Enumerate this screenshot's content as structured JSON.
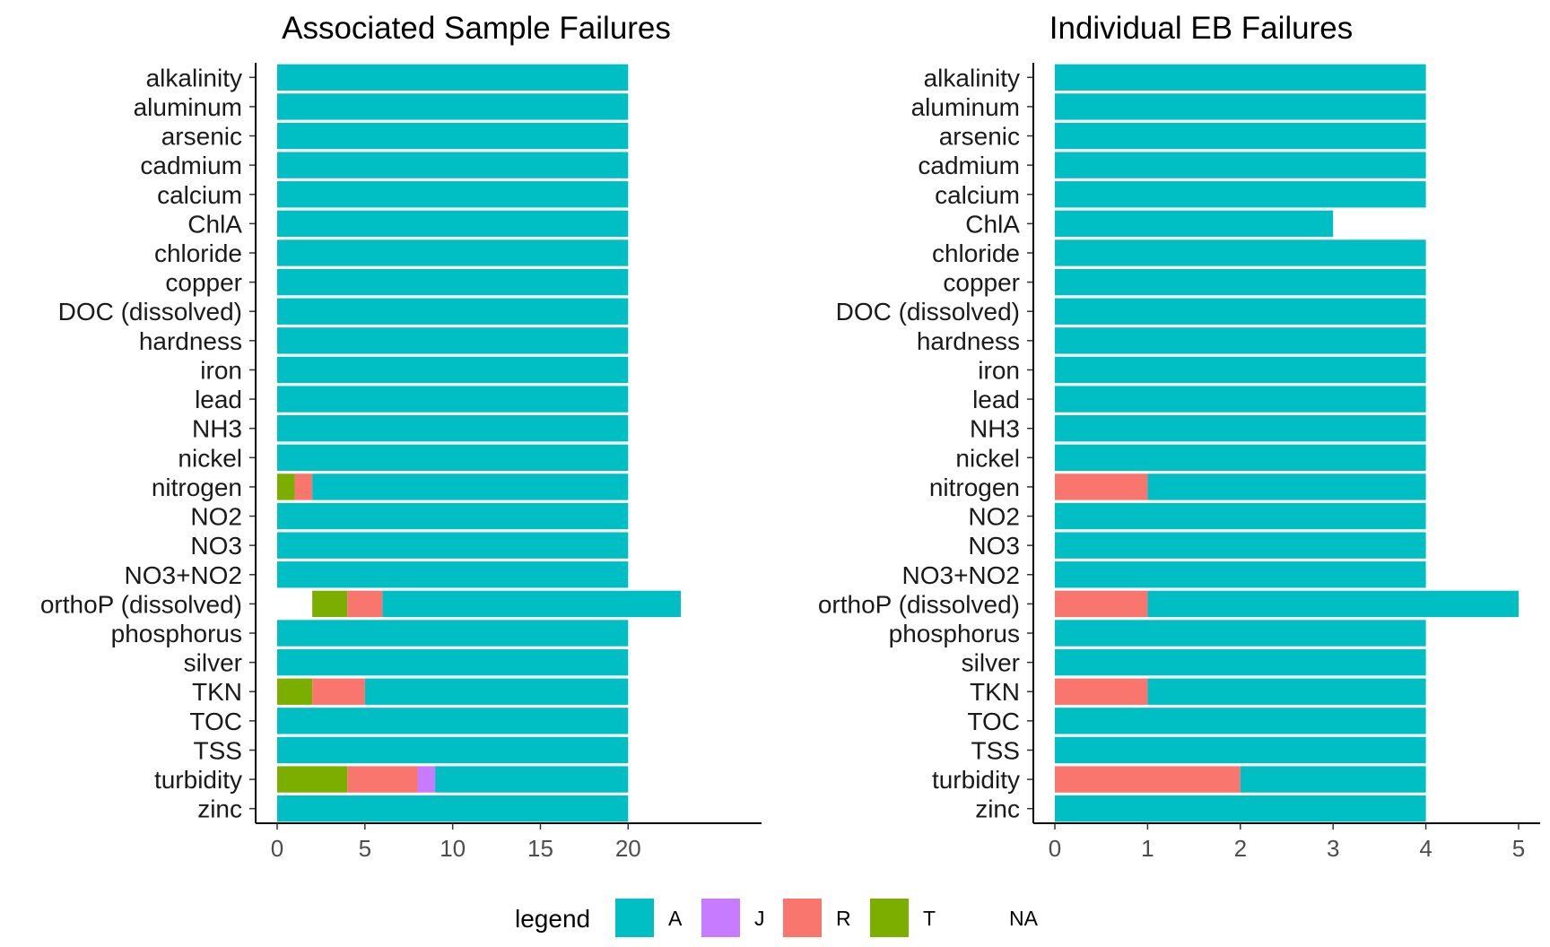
{
  "colors": {
    "A": "#00BFC4",
    "J": "#C77CFF",
    "R": "#F8766D",
    "T": "#7CAE00",
    "NA": "#ffffff"
  },
  "legend": {
    "title": "legend",
    "items": [
      {
        "key": "A",
        "label": "A"
      },
      {
        "key": "J",
        "label": "J"
      },
      {
        "key": "R",
        "label": "R"
      },
      {
        "key": "T",
        "label": "T"
      },
      {
        "key": "NA",
        "label": "NA"
      }
    ]
  },
  "chart_data": [
    {
      "type": "bar",
      "orientation": "horizontal",
      "stacked": true,
      "title": "Associated Sample Failures",
      "xlabel": "",
      "ylabel": "",
      "xlim": [
        0,
        23
      ],
      "xticks": [
        0,
        5,
        10,
        15,
        20
      ],
      "grid": false,
      "categories": [
        "alkalinity",
        "aluminum",
        "arsenic",
        "cadmium",
        "calcium",
        "ChlA",
        "chloride",
        "copper",
        "DOC (dissolved)",
        "hardness",
        "iron",
        "lead",
        "NH3",
        "nickel",
        "nitrogen",
        "NO2",
        "NO3",
        "NO3+NO2",
        "orthoP (dissolved)",
        "phosphorus",
        "silver",
        "TKN",
        "TOC",
        "TSS",
        "turbidity",
        "zinc"
      ],
      "series": [
        {
          "name": "NA",
          "values": [
            0,
            0,
            0,
            0,
            0,
            0,
            0,
            0,
            0,
            0,
            0,
            0,
            0,
            0,
            0,
            0,
            0,
            0,
            2,
            0,
            0,
            0,
            0,
            0,
            0,
            0
          ]
        },
        {
          "name": "T",
          "values": [
            0,
            0,
            0,
            0,
            0,
            0,
            0,
            0,
            0,
            0,
            0,
            0,
            0,
            0,
            1,
            0,
            0,
            0,
            2,
            0,
            0,
            2,
            0,
            0,
            4,
            0
          ]
        },
        {
          "name": "R",
          "values": [
            0,
            0,
            0,
            0,
            0,
            0,
            0,
            0,
            0,
            0,
            0,
            0,
            0,
            0,
            1,
            0,
            0,
            0,
            2,
            0,
            0,
            3,
            0,
            0,
            4,
            0
          ]
        },
        {
          "name": "J",
          "values": [
            0,
            0,
            0,
            0,
            0,
            0,
            0,
            0,
            0,
            0,
            0,
            0,
            0,
            0,
            0,
            0,
            0,
            0,
            0,
            0,
            0,
            0,
            0,
            0,
            1,
            0
          ]
        },
        {
          "name": "A",
          "values": [
            20,
            20,
            20,
            20,
            20,
            20,
            20,
            20,
            20,
            20,
            20,
            20,
            20,
            20,
            18,
            20,
            20,
            20,
            17,
            20,
            20,
            15,
            20,
            20,
            11,
            20
          ]
        }
      ]
    },
    {
      "type": "bar",
      "orientation": "horizontal",
      "stacked": true,
      "title": "Individual EB Failures",
      "xlabel": "",
      "ylabel": "",
      "xlim": [
        0,
        5
      ],
      "xticks": [
        0,
        1,
        2,
        3,
        4,
        5
      ],
      "grid": false,
      "categories": [
        "alkalinity",
        "aluminum",
        "arsenic",
        "cadmium",
        "calcium",
        "ChlA",
        "chloride",
        "copper",
        "DOC (dissolved)",
        "hardness",
        "iron",
        "lead",
        "NH3",
        "nickel",
        "nitrogen",
        "NO2",
        "NO3",
        "NO3+NO2",
        "orthoP (dissolved)",
        "phosphorus",
        "silver",
        "TKN",
        "TOC",
        "TSS",
        "turbidity",
        "zinc"
      ],
      "series": [
        {
          "name": "R",
          "values": [
            0,
            0,
            0,
            0,
            0,
            0,
            0,
            0,
            0,
            0,
            0,
            0,
            0,
            0,
            1,
            0,
            0,
            0,
            1,
            0,
            0,
            1,
            0,
            0,
            2,
            0
          ]
        },
        {
          "name": "A",
          "values": [
            4,
            4,
            4,
            4,
            4,
            3,
            4,
            4,
            4,
            4,
            4,
            4,
            4,
            4,
            3,
            4,
            4,
            4,
            4,
            4,
            4,
            3,
            4,
            4,
            2,
            4
          ]
        }
      ]
    }
  ]
}
